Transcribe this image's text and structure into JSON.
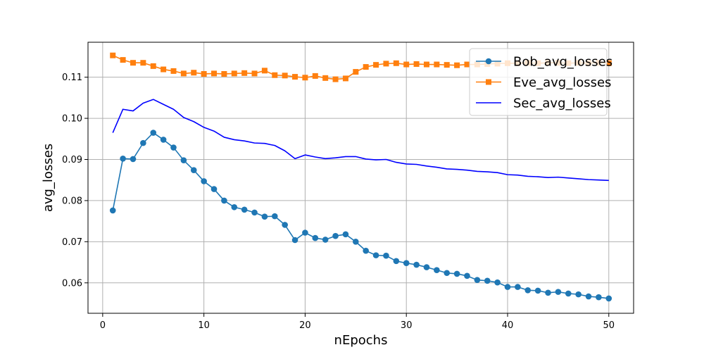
{
  "chart_data": {
    "type": "line",
    "title": "",
    "xlabel": "nEpochs",
    "ylabel": "avg_losses",
    "xlim": [
      -1.45,
      52.45
    ],
    "ylim": [
      0.0526,
      0.1185
    ],
    "xticks": [
      0,
      10,
      20,
      30,
      40,
      50
    ],
    "yticks": [
      0.06,
      0.07,
      0.08,
      0.09,
      0.1,
      0.11
    ],
    "ytick_labels": [
      "0.06",
      "0.07",
      "0.08",
      "0.09",
      "0.10",
      "0.11"
    ],
    "grid": true,
    "legend_position": "top-right",
    "x": [
      1,
      2,
      3,
      4,
      5,
      6,
      7,
      8,
      9,
      10,
      11,
      12,
      13,
      14,
      15,
      16,
      17,
      18,
      19,
      20,
      21,
      22,
      23,
      24,
      25,
      26,
      27,
      28,
      29,
      30,
      31,
      32,
      33,
      34,
      35,
      36,
      37,
      38,
      39,
      40,
      41,
      42,
      43,
      44,
      45,
      46,
      47,
      48,
      49,
      50
    ],
    "series": [
      {
        "name": "Bob_avg_losses",
        "color": "#1f77b4",
        "marker": "circle",
        "values": [
          0.0776,
          0.0902,
          0.0901,
          0.094,
          0.0965,
          0.0948,
          0.0929,
          0.0898,
          0.0874,
          0.0847,
          0.0828,
          0.08,
          0.0784,
          0.0778,
          0.0771,
          0.0761,
          0.0762,
          0.0741,
          0.0704,
          0.0722,
          0.0709,
          0.0705,
          0.0714,
          0.0718,
          0.07,
          0.0678,
          0.0667,
          0.0666,
          0.0653,
          0.0648,
          0.0644,
          0.0638,
          0.0631,
          0.0624,
          0.0622,
          0.0617,
          0.0607,
          0.0605,
          0.0601,
          0.059,
          0.059,
          0.0582,
          0.0581,
          0.0576,
          0.0578,
          0.0574,
          0.0572,
          0.0567,
          0.0565,
          0.0562
        ]
      },
      {
        "name": "Eve_avg_losses",
        "color": "#ff7f0e",
        "marker": "square",
        "values": [
          0.1153,
          0.1142,
          0.1135,
          0.1135,
          0.1127,
          0.1119,
          0.1115,
          0.1109,
          0.1111,
          0.1108,
          0.1109,
          0.1108,
          0.1109,
          0.111,
          0.1109,
          0.1116,
          0.1105,
          0.1104,
          0.1101,
          0.1099,
          0.1103,
          0.1098,
          0.1095,
          0.1097,
          0.1113,
          0.1125,
          0.113,
          0.1133,
          0.1134,
          0.1131,
          0.1132,
          0.1131,
          0.1131,
          0.113,
          0.1129,
          0.1131,
          0.1131,
          0.1132,
          0.1133,
          0.1134,
          0.1134,
          0.1135,
          0.1134,
          0.1135,
          0.1135,
          0.1134,
          0.1135,
          0.1134,
          0.1135,
          0.1134
        ]
      },
      {
        "name": "Sec_avg_losses",
        "color": "#0000ff",
        "marker": "none",
        "values": [
          0.0965,
          0.1022,
          0.1018,
          0.1037,
          0.1046,
          0.1034,
          0.1022,
          0.1002,
          0.0992,
          0.0978,
          0.0969,
          0.0954,
          0.0948,
          0.0945,
          0.094,
          0.0939,
          0.0934,
          0.0921,
          0.0902,
          0.0911,
          0.0906,
          0.0902,
          0.0904,
          0.0907,
          0.0907,
          0.0901,
          0.0899,
          0.09,
          0.0893,
          0.0889,
          0.0888,
          0.0884,
          0.0881,
          0.0877,
          0.0876,
          0.0874,
          0.0871,
          0.087,
          0.0868,
          0.0863,
          0.0862,
          0.0859,
          0.0858,
          0.0856,
          0.0857,
          0.0855,
          0.0853,
          0.0851,
          0.085,
          0.0849
        ]
      }
    ]
  }
}
